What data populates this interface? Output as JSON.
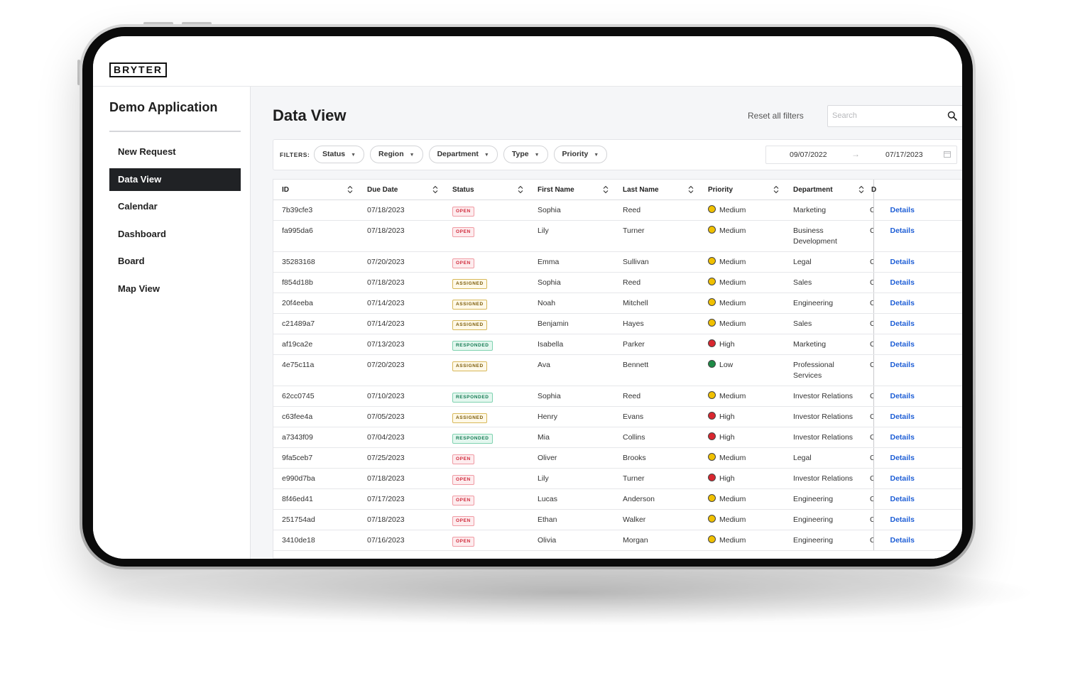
{
  "brand": {
    "logo_text": "BRYTER"
  },
  "sidebar": {
    "app_title": "Demo Application",
    "items": [
      {
        "label": "New Request",
        "active": false
      },
      {
        "label": "Data View",
        "active": true
      },
      {
        "label": "Calendar",
        "active": false
      },
      {
        "label": "Dashboard",
        "active": false
      },
      {
        "label": "Board",
        "active": false
      },
      {
        "label": "Map View",
        "active": false
      }
    ]
  },
  "header": {
    "title": "Data View",
    "reset_label": "Reset all filters",
    "search_placeholder": "Search"
  },
  "filters": {
    "label": "FILTERS:",
    "chips": [
      "Status",
      "Region",
      "Department",
      "Type",
      "Priority"
    ],
    "date_from": "09/07/2022",
    "date_to": "07/17/2023"
  },
  "table": {
    "columns": [
      "ID",
      "Due Date",
      "Status",
      "First Name",
      "Last Name",
      "Priority",
      "Department",
      "D"
    ],
    "details_label": "Details",
    "rows": [
      {
        "id": "7b39cfe3",
        "due": "07/18/2023",
        "status": "OPEN",
        "status_kind": "open",
        "first": "Sophia",
        "last": "Reed",
        "priority": "Medium",
        "priority_kind": "medium",
        "dept": "Marketing",
        "extra": "C"
      },
      {
        "id": "fa995da6",
        "due": "07/18/2023",
        "status": "OPEN",
        "status_kind": "open",
        "first": "Lily",
        "last": "Turner",
        "priority": "Medium",
        "priority_kind": "medium",
        "dept": "Business Development",
        "extra": "C"
      },
      {
        "id": "35283168",
        "due": "07/20/2023",
        "status": "OPEN",
        "status_kind": "open",
        "first": "Emma",
        "last": "Sullivan",
        "priority": "Medium",
        "priority_kind": "medium",
        "dept": "Legal",
        "extra": "C"
      },
      {
        "id": "f854d18b",
        "due": "07/18/2023",
        "status": "ASSIGNED",
        "status_kind": "assigned",
        "first": "Sophia",
        "last": "Reed",
        "priority": "Medium",
        "priority_kind": "medium",
        "dept": "Sales",
        "extra": "C"
      },
      {
        "id": "20f4eeba",
        "due": "07/14/2023",
        "status": "ASSIGNED",
        "status_kind": "assigned",
        "first": "Noah",
        "last": "Mitchell",
        "priority": "Medium",
        "priority_kind": "medium",
        "dept": "Engineering",
        "extra": "C"
      },
      {
        "id": "c21489a7",
        "due": "07/14/2023",
        "status": "ASSIGNED",
        "status_kind": "assigned",
        "first": "Benjamin",
        "last": "Hayes",
        "priority": "Medium",
        "priority_kind": "medium",
        "dept": "Sales",
        "extra": "C"
      },
      {
        "id": "af19ca2e",
        "due": "07/13/2023",
        "status": "RESPONDED",
        "status_kind": "responded",
        "first": "Isabella",
        "last": "Parker",
        "priority": "High",
        "priority_kind": "high",
        "dept": "Marketing",
        "extra": "C"
      },
      {
        "id": "4e75c11a",
        "due": "07/20/2023",
        "status": "ASSIGNED",
        "status_kind": "assigned",
        "first": "Ava",
        "last": "Bennett",
        "priority": "Low",
        "priority_kind": "low",
        "dept": "Professional Services",
        "extra": "C"
      },
      {
        "id": "62cc0745",
        "due": "07/10/2023",
        "status": "RESPONDED",
        "status_kind": "responded",
        "first": "Sophia",
        "last": "Reed",
        "priority": "Medium",
        "priority_kind": "medium",
        "dept": "Investor Relations",
        "extra": "C"
      },
      {
        "id": "c63fee4a",
        "due": "07/05/2023",
        "status": "ASSIGNED",
        "status_kind": "assigned",
        "first": "Henry",
        "last": "Evans",
        "priority": "High",
        "priority_kind": "high",
        "dept": "Investor Relations",
        "extra": "C"
      },
      {
        "id": "a7343f09",
        "due": "07/04/2023",
        "status": "RESPONDED",
        "status_kind": "responded",
        "first": "Mia",
        "last": "Collins",
        "priority": "High",
        "priority_kind": "high",
        "dept": "Investor Relations",
        "extra": "C"
      },
      {
        "id": "9fa5ceb7",
        "due": "07/25/2023",
        "status": "OPEN",
        "status_kind": "open",
        "first": "Oliver",
        "last": "Brooks",
        "priority": "Medium",
        "priority_kind": "medium",
        "dept": "Legal",
        "extra": "C"
      },
      {
        "id": "e990d7ba",
        "due": "07/18/2023",
        "status": "OPEN",
        "status_kind": "open",
        "first": "Lily",
        "last": "Turner",
        "priority": "High",
        "priority_kind": "high",
        "dept": "Investor Relations",
        "extra": "C"
      },
      {
        "id": "8f46ed41",
        "due": "07/17/2023",
        "status": "OPEN",
        "status_kind": "open",
        "first": "Lucas",
        "last": "Anderson",
        "priority": "Medium",
        "priority_kind": "medium",
        "dept": "Engineering",
        "extra": "C"
      },
      {
        "id": "251754ad",
        "due": "07/18/2023",
        "status": "OPEN",
        "status_kind": "open",
        "first": "Ethan",
        "last": "Walker",
        "priority": "Medium",
        "priority_kind": "medium",
        "dept": "Engineering",
        "extra": "C"
      },
      {
        "id": "3410de18",
        "due": "07/16/2023",
        "status": "OPEN",
        "status_kind": "open",
        "first": "Olivia",
        "last": "Morgan",
        "priority": "Medium",
        "priority_kind": "medium",
        "dept": "Engineering",
        "extra": "C"
      }
    ]
  }
}
